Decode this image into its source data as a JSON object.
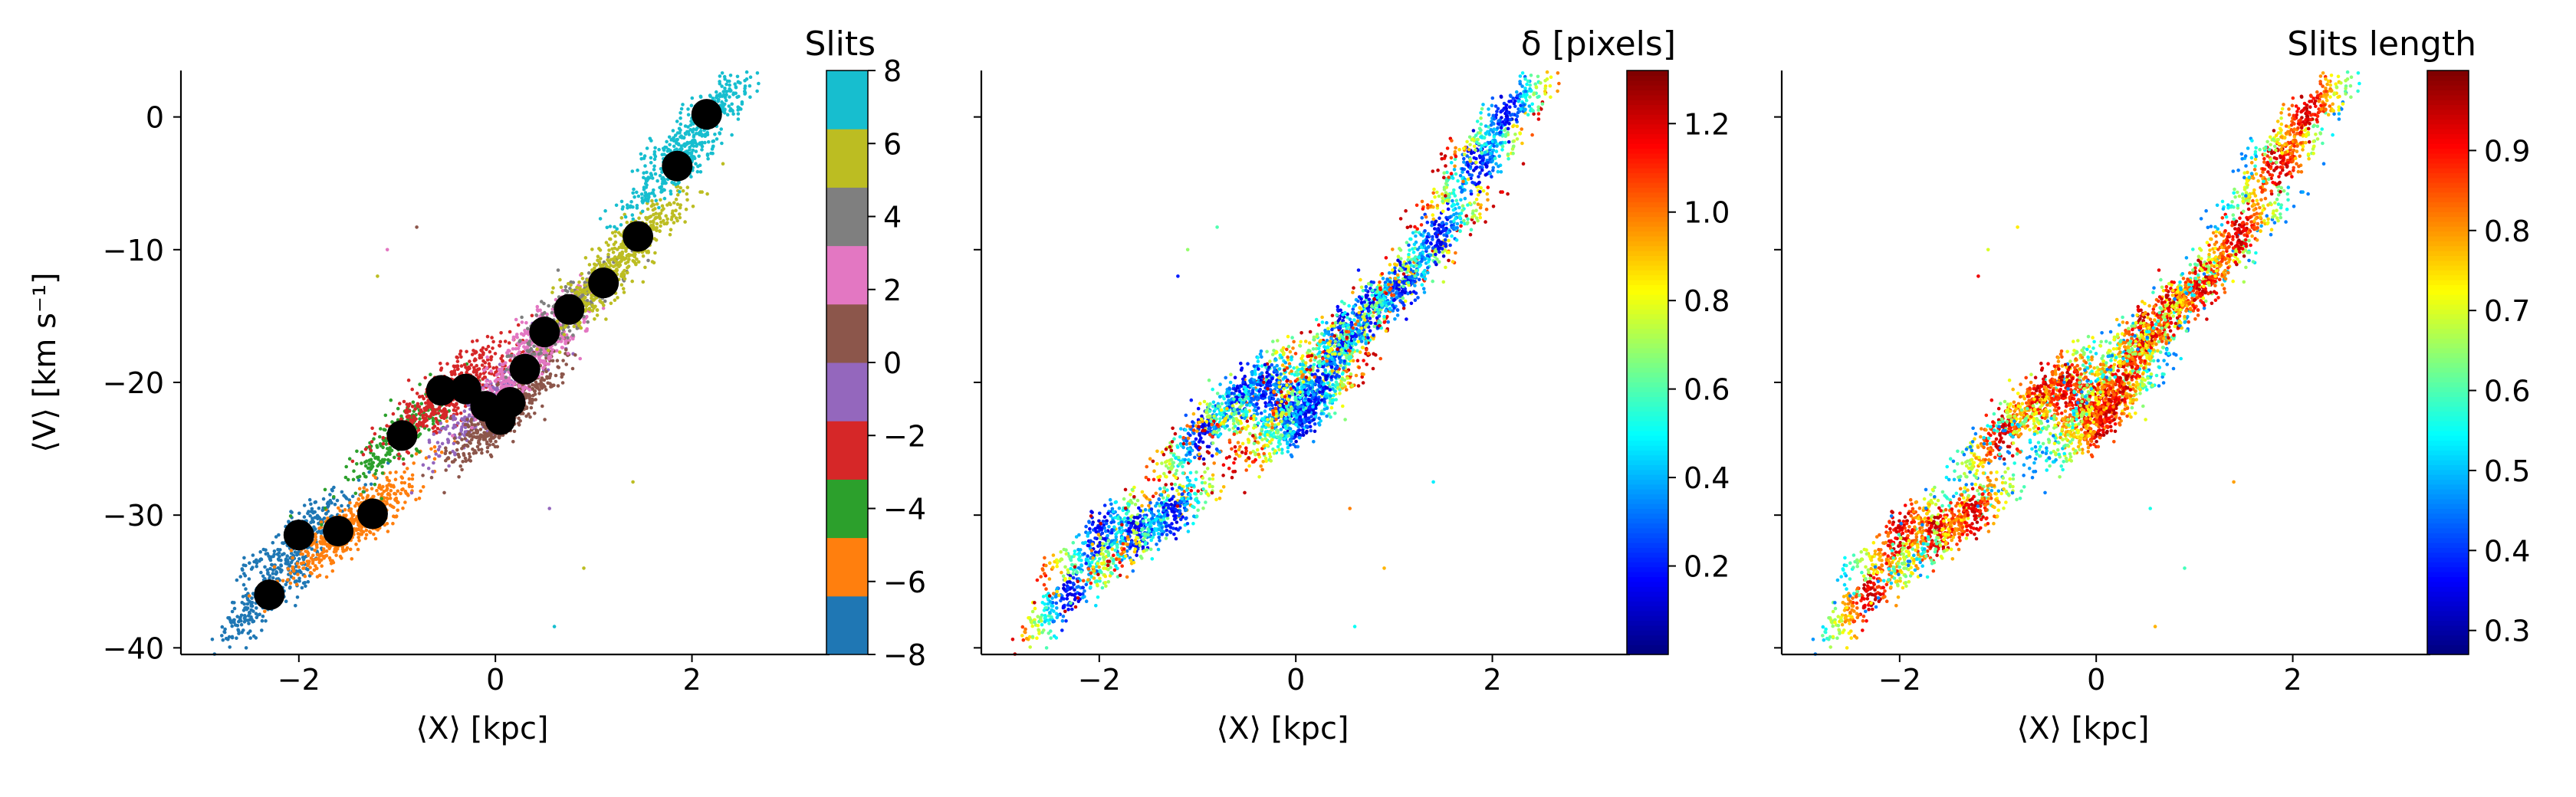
{
  "chart_data": [
    {
      "type": "scatter",
      "title": "",
      "xlabel": "⟨X⟩ [kpc]",
      "ylabel": "⟨V⟩ [km s⁻¹]",
      "xlim": [
        -3.2,
        3.4
      ],
      "ylim": [
        -40.5,
        3.5
      ],
      "xticks": [
        -2,
        0,
        2
      ],
      "xtick_labels": [
        "−2",
        "0",
        "2"
      ],
      "yticks": [
        0,
        -10,
        -20,
        -30,
        -40
      ],
      "ytick_labels": [
        "0",
        "−10",
        "−20",
        "−30",
        "−40"
      ],
      "grid": false,
      "point_color_by": "slit index",
      "markers": {
        "name": "slit centers",
        "color": "#000000",
        "x": [
          -2.3,
          -2.0,
          -1.6,
          -1.25,
          -0.95,
          -0.55,
          -0.3,
          -0.1,
          0.05,
          0.15,
          0.3,
          0.5,
          0.75,
          1.1,
          1.45,
          1.85,
          2.15
        ],
        "y": [
          -36,
          -31.5,
          -31.2,
          -29.9,
          -24,
          -20.6,
          -20.5,
          -21.8,
          -22.8,
          -21.5,
          -19,
          -16.2,
          -14.5,
          -12.5,
          -9,
          -3.7,
          0.2
        ]
      },
      "colorbar": {
        "label": "Slits",
        "type": "discrete",
        "range": [
          -8,
          8
        ],
        "ticks": [
          8,
          6,
          4,
          2,
          0,
          -2,
          -4,
          -6,
          -8
        ],
        "tick_labels": [
          "8",
          "6",
          "4",
          "2",
          "0",
          "−2",
          "−4",
          "−6",
          "−8"
        ],
        "colors": [
          "#1f77b4",
          "#ff7f0e",
          "#2ca02c",
          "#d62728",
          "#9467bd",
          "#8c564b",
          "#e377c2",
          "#7f7f7f",
          "#bcbd22",
          "#17becf"
        ]
      }
    },
    {
      "type": "scatter",
      "title": "",
      "xlabel": "⟨X⟩ [kpc]",
      "ylabel": "",
      "xlim": [
        -3.2,
        3.4
      ],
      "ylim": [
        -40.5,
        3.5
      ],
      "xticks": [
        -2,
        0,
        2
      ],
      "xtick_labels": [
        "−2",
        "0",
        "2"
      ],
      "grid": false,
      "point_color_by": "δ [pixels]",
      "colorbar": {
        "label": "δ [pixels]",
        "type": "continuous",
        "colormap": "jet",
        "range": [
          0,
          1.32
        ],
        "ticks": [
          1.2,
          1.0,
          0.8,
          0.6,
          0.4,
          0.2
        ],
        "tick_labels": [
          "1.2",
          "1.0",
          "0.8",
          "0.6",
          "0.4",
          "0.2"
        ]
      }
    },
    {
      "type": "scatter",
      "title": "",
      "xlabel": "⟨X⟩ [kpc]",
      "ylabel": "",
      "xlim": [
        -3.2,
        3.4
      ],
      "ylim": [
        -40.5,
        3.5
      ],
      "xticks": [
        -2,
        0,
        2
      ],
      "xtick_labels": [
        "−2",
        "0",
        "2"
      ],
      "grid": false,
      "point_color_by": "Slits length",
      "colorbar": {
        "label": "Slits length",
        "type": "continuous",
        "colormap": "jet",
        "range": [
          0.27,
          1.0
        ],
        "ticks": [
          0.9,
          0.8,
          0.7,
          0.6,
          0.5,
          0.4,
          0.3
        ],
        "tick_labels": [
          "0.9",
          "0.8",
          "0.7",
          "0.6",
          "0.5",
          "0.4",
          "0.3"
        ]
      }
    }
  ]
}
